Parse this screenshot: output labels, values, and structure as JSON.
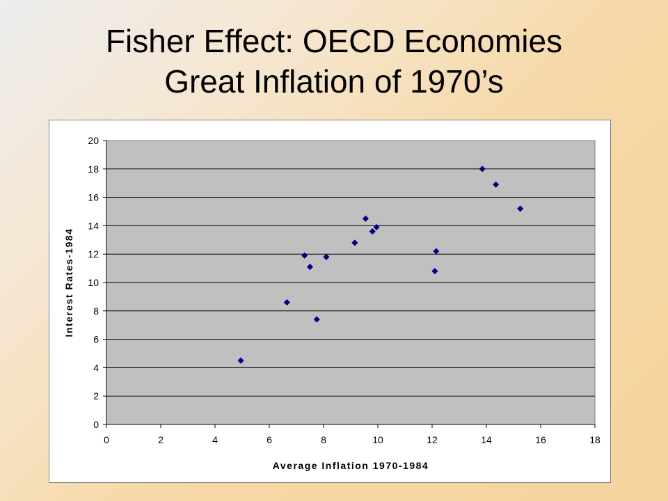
{
  "slide": {
    "title_line1": "Fisher Effect: OECD Economies",
    "title_line2": "Great Inflation of 1970’s"
  },
  "chart_data": {
    "type": "scatter",
    "title": "",
    "xlabel": "Average Inflation 1970-1984",
    "ylabel": "Interest Rates-1984",
    "xlim": [
      0,
      18
    ],
    "ylim": [
      0,
      20
    ],
    "xticks": [
      0,
      2,
      4,
      6,
      8,
      10,
      12,
      14,
      16,
      18
    ],
    "yticks": [
      0,
      2,
      4,
      6,
      8,
      10,
      12,
      14,
      16,
      18,
      20
    ],
    "grid": "horizontal",
    "legend": "none",
    "plot_background": "#c0c0c0",
    "marker_color": "#000080",
    "marker": "diamond",
    "series": [
      {
        "x": [
          4.95,
          6.65,
          7.3,
          7.5,
          7.75,
          8.1,
          9.15,
          9.55,
          9.8,
          9.95,
          12.1,
          12.15,
          13.85,
          14.35,
          15.25
        ],
        "y": [
          4.5,
          8.6,
          11.9,
          11.1,
          7.4,
          11.8,
          12.8,
          14.5,
          13.6,
          13.9,
          10.8,
          12.2,
          18.0,
          16.9,
          15.2
        ]
      }
    ]
  }
}
